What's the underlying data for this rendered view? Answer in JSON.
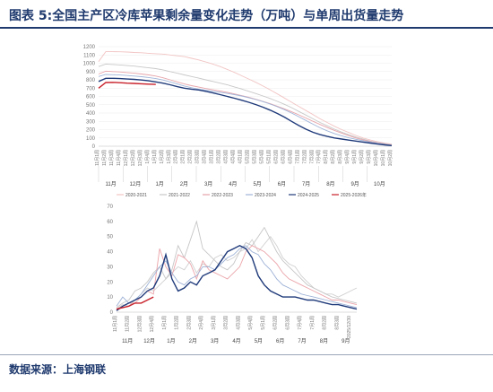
{
  "title": "图表 5:全国主产区冷库苹果剩余量变化走势（万吨）与单周出货量走势",
  "source": "数据来源：上海钢联",
  "colors": {
    "heading": "#1f3a6e"
  },
  "chart_data": [
    {
      "type": "line",
      "title": "",
      "ylim": [
        0,
        1200
      ],
      "yticks": [
        0,
        100,
        200,
        300,
        400,
        500,
        600,
        700,
        800,
        900,
        1000,
        1100,
        1200
      ],
      "month_labels": [
        "11月",
        "12月",
        "1月",
        "2月",
        "3月",
        "4月",
        "5月",
        "6月",
        "7月",
        "8月",
        "9月",
        "10月"
      ],
      "legend_position": "bottom",
      "series": [
        {
          "name": "2020-2021",
          "color": "#f2c4c4",
          "values": [
            1020,
            1140,
            1140,
            1138,
            1135,
            1130,
            1126,
            1120,
            1115,
            1110,
            1100,
            1090,
            1080,
            1060,
            1040,
            1015,
            990,
            960,
            925,
            890,
            850,
            810,
            770,
            725,
            680,
            630,
            580,
            530,
            480,
            430,
            380,
            330,
            285,
            240,
            200,
            165,
            130,
            100,
            75,
            55,
            38,
            25
          ]
        },
        {
          "name": "2021-2022",
          "color": "#c8c8c8",
          "values": [
            960,
            990,
            985,
            980,
            972,
            965,
            955,
            945,
            935,
            920,
            900,
            880,
            860,
            840,
            820,
            800,
            780,
            760,
            740,
            715,
            690,
            662,
            635,
            605,
            575,
            540,
            505,
            465,
            420,
            375,
            330,
            285,
            245,
            205,
            170,
            138,
            110,
            85,
            62,
            45,
            30,
            18
          ]
        },
        {
          "name": "2022-2023",
          "color": "#e6a4aa",
          "values": [
            870,
            905,
            900,
            895,
            888,
            880,
            870,
            860,
            845,
            825,
            800,
            775,
            750,
            730,
            712,
            695,
            680,
            665,
            650,
            630,
            610,
            590,
            565,
            540,
            512,
            482,
            450,
            415,
            378,
            340,
            300,
            262,
            225,
            190,
            158,
            128,
            100,
            76,
            56,
            40,
            26,
            14
          ]
        },
        {
          "name": "2023-2024",
          "color": "#9fb4d8",
          "values": [
            840,
            865,
            862,
            858,
            852,
            845,
            838,
            828,
            815,
            798,
            775,
            750,
            725,
            705,
            688,
            675,
            662,
            650,
            637,
            622,
            605,
            585,
            562,
            537,
            508,
            476,
            440,
            400,
            356,
            310,
            265,
            222,
            185,
            152,
            125,
            102,
            83,
            66,
            50,
            36,
            24,
            12
          ]
        },
        {
          "name": "2024-2025",
          "color": "#1f3a7a",
          "values": [
            780,
            818,
            818,
            815,
            810,
            805,
            798,
            788,
            775,
            760,
            740,
            718,
            700,
            688,
            678,
            662,
            642,
            622,
            600,
            578,
            555,
            530,
            502,
            470,
            435,
            395,
            350,
            300,
            250,
            205,
            168,
            140,
            118,
            100,
            86,
            74,
            62,
            50,
            38,
            26,
            16,
            8
          ]
        },
        {
          "name": "2025-2026年",
          "color": "#c8202a",
          "values": [
            700,
            768,
            770,
            765,
            760,
            757,
            752,
            748,
            745
          ]
        }
      ]
    },
    {
      "type": "line",
      "title": "",
      "ylim": [
        0,
        70
      ],
      "yticks": [
        0,
        10,
        20,
        30,
        40,
        50,
        60,
        70
      ],
      "month_labels": [
        "11月",
        "12月",
        "1月",
        "2月",
        "3月",
        "4月",
        "5月",
        "6月",
        "7月",
        "8月",
        "9月"
      ],
      "last_tick_label": "2025/12/30",
      "series": [
        {
          "name": "2020-2021",
          "color": "#d0d0d0",
          "values": [
            2,
            5,
            4,
            8,
            12,
            16,
            14,
            18,
            22,
            26,
            30,
            28,
            34,
            26,
            32,
            30,
            36,
            38,
            34,
            36,
            40,
            42,
            48,
            40,
            45,
            50,
            44,
            36,
            32,
            30,
            24,
            20,
            16,
            14,
            12,
            12,
            10,
            12,
            14,
            16
          ]
        },
        {
          "name": "2021-2022",
          "color": "#c6c6c6",
          "values": [
            3,
            6,
            8,
            14,
            16,
            20,
            26,
            30,
            22,
            28,
            44,
            36,
            48,
            60,
            42,
            38,
            34,
            30,
            28,
            32,
            40,
            46,
            44,
            50,
            56,
            48,
            40,
            34,
            30,
            26,
            22,
            18,
            16,
            14,
            12,
            10,
            9,
            8,
            7,
            6
          ]
        },
        {
          "name": "2022-2023",
          "color": "#eba4aa",
          "values": [
            2,
            4,
            6,
            6,
            10,
            14,
            12,
            42,
            30,
            24,
            38,
            36,
            32,
            22,
            34,
            28,
            26,
            24,
            22,
            26,
            30,
            40,
            44,
            42,
            40,
            36,
            32,
            26,
            22,
            20,
            18,
            16,
            14,
            12,
            10,
            8,
            8,
            7,
            6,
            5
          ]
        },
        {
          "name": "2023-2024",
          "color": "#9db1d6",
          "values": [
            4,
            10,
            6,
            8,
            12,
            18,
            24,
            30,
            34,
            26,
            20,
            18,
            22,
            24,
            30,
            30,
            28,
            32,
            36,
            38,
            42,
            44,
            40,
            38,
            32,
            28,
            22,
            18,
            16,
            14,
            12,
            11,
            10,
            9,
            8,
            7,
            6,
            5,
            4,
            3
          ]
        },
        {
          "name": "2024-2025",
          "color": "#1f3a7a",
          "values": [
            1,
            4,
            6,
            8,
            10,
            14,
            16,
            24,
            38,
            22,
            14,
            16,
            20,
            18,
            24,
            26,
            28,
            34,
            40,
            42,
            44,
            42,
            36,
            24,
            18,
            14,
            12,
            10,
            10,
            10,
            9,
            8,
            8,
            7,
            6,
            5,
            5,
            4,
            3,
            2
          ]
        },
        {
          "name": "2025-2026年",
          "color": "#c8202a",
          "values": [
            2,
            3,
            4,
            6,
            6,
            8,
            10
          ]
        }
      ]
    }
  ]
}
